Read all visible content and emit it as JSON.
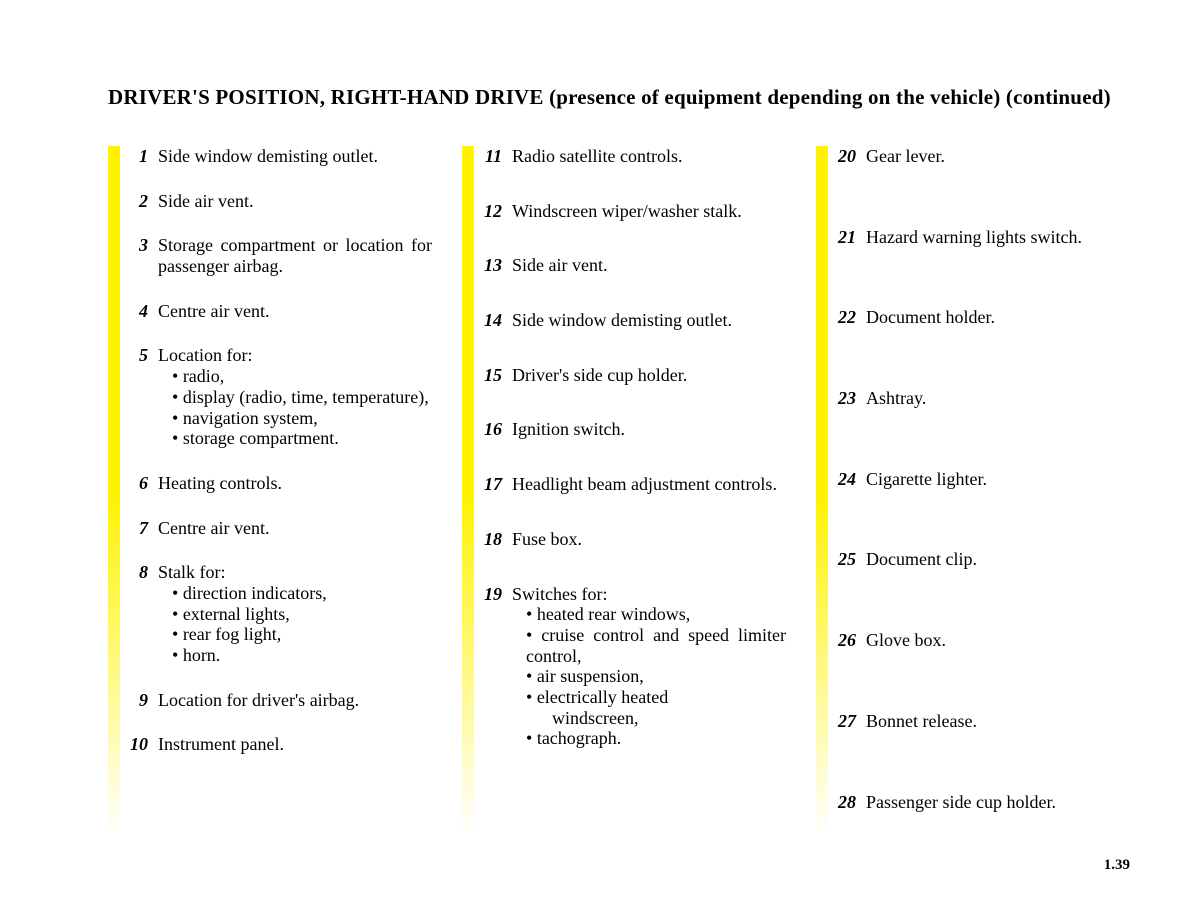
{
  "title_main": "DRIVER'S POSITION, RIGHT-HAND DRIVE",
  "title_sub": " (presence of equipment depending on the vehicle) (continued)",
  "page_number": "1.39",
  "col1": [
    {
      "n": "1",
      "t": "Side window demisting outlet."
    },
    {
      "n": "2",
      "t": "Side air vent."
    },
    {
      "n": "3",
      "t": "Storage compartment or location for passenger airbag."
    },
    {
      "n": "4",
      "t": "Centre air vent."
    },
    {
      "n": "5",
      "t": "Location for:",
      "bullets": [
        "radio,",
        "display (radio, time, temperature),",
        "navigation system,",
        "storage compartment."
      ],
      "bullet_justify": [
        false,
        true,
        false,
        false
      ]
    },
    {
      "n": "6",
      "t": "Heating controls."
    },
    {
      "n": "7",
      "t": "Centre air vent."
    },
    {
      "n": "8",
      "t": "Stalk for:",
      "bullets": [
        "direction indicators,",
        "external lights,",
        "rear fog light,",
        "horn."
      ]
    },
    {
      "n": "9",
      "t": "Location for driver's airbag."
    },
    {
      "n": "10",
      "t": "Instrument panel."
    }
  ],
  "col2": [
    {
      "n": "11",
      "t": "Radio satellite controls."
    },
    {
      "n": "12",
      "t": "Windscreen wiper/washer stalk."
    },
    {
      "n": "13",
      "t": "Side air vent."
    },
    {
      "n": "14",
      "t": "Side window demisting outlet."
    },
    {
      "n": "15",
      "t": "Driver's side cup holder."
    },
    {
      "n": "16",
      "t": "Ignition switch."
    },
    {
      "n": "17",
      "t": "Headlight beam adjustment controls."
    },
    {
      "n": "18",
      "t": "Fuse box."
    },
    {
      "n": "19",
      "t": "Switches for:",
      "bullets": [
        "heated rear windows,",
        "cruise control and speed limiter control,",
        "air suspension,",
        "electrically heated",
        "tachograph."
      ],
      "bullet_justify": [
        false,
        true,
        false,
        false,
        false
      ],
      "extra_after": {
        "index": 3,
        "text": "windscreen,"
      }
    }
  ],
  "col3": [
    {
      "n": "20",
      "t": "Gear lever."
    },
    {
      "n": "21",
      "t": "Hazard warning lights switch."
    },
    {
      "n": "22",
      "t": "Document holder."
    },
    {
      "n": "23",
      "t": "Ashtray."
    },
    {
      "n": "24",
      "t": "Cigarette lighter."
    },
    {
      "n": "25",
      "t": "Document clip."
    },
    {
      "n": "26",
      "t": "Glove box."
    },
    {
      "n": "27",
      "t": "Bonnet release."
    },
    {
      "n": "28",
      "t": "Passenger side cup holder."
    }
  ]
}
